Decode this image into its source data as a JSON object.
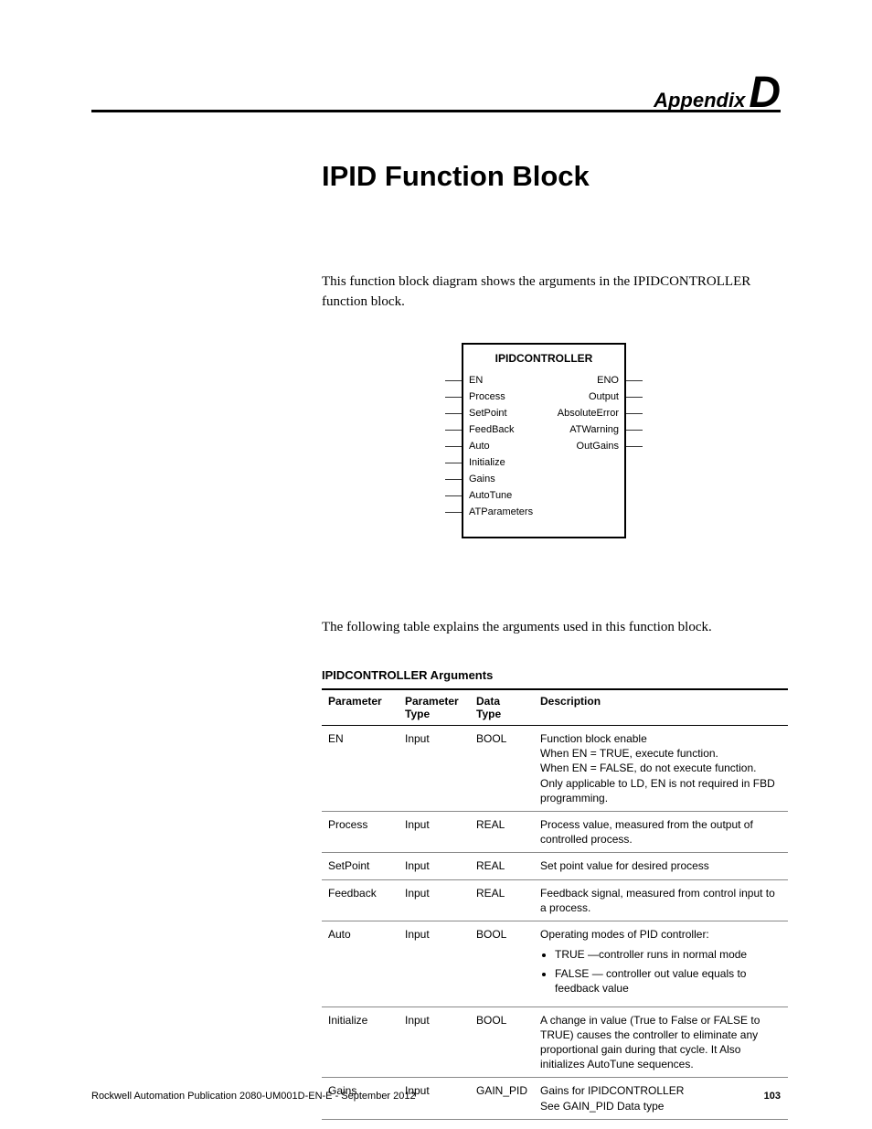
{
  "header": {
    "appendix_label": "Appendix",
    "appendix_letter": "D"
  },
  "title": "IPID Function Block",
  "intro": "This function block diagram shows the arguments in the IPIDCONTROLLER function block.",
  "diagram": {
    "block_name": "IPIDCONTROLLER",
    "left_ports": [
      "EN",
      "Process",
      "SetPoint",
      "FeedBack",
      "Auto",
      "Initialize",
      "Gains",
      "AutoTune",
      "ATParameters"
    ],
    "right_ports": [
      "ENO",
      "Output",
      "AbsoluteError",
      "ATWarning",
      "OutGains"
    ]
  },
  "table_intro": "The following table explains the arguments used in this function block.",
  "table_heading": "IPIDCONTROLLER Arguments",
  "table": {
    "headers": [
      "Parameter",
      "Parameter Type",
      "Data Type",
      "Description"
    ],
    "rows": [
      {
        "param": "EN",
        "ptype": "Input",
        "dtype": "BOOL",
        "desc_lines": [
          "Function block  enable",
          "When EN = TRUE, execute function.",
          "When EN = FALSE, do not execute function.",
          "Only applicable to LD, EN is not required in FBD programming."
        ]
      },
      {
        "param": "Process",
        "ptype": "Input",
        "dtype": "REAL",
        "desc_lines": [
          "Process value, measured from the output of controlled process."
        ]
      },
      {
        "param": "SetPoint",
        "ptype": "Input",
        "dtype": "REAL",
        "desc_lines": [
          "Set point value for desired process"
        ]
      },
      {
        "param": "Feedback",
        "ptype": "Input",
        "dtype": "REAL",
        "desc_lines": [
          "Feedback signal, measured from control input to a process."
        ]
      },
      {
        "param": "Auto",
        "ptype": "Input",
        "dtype": "BOOL",
        "desc_intro": "Operating modes of PID controller:",
        "desc_bullets": [
          "TRUE —controller runs in normal mode",
          "FALSE — controller out value equals to feedback value"
        ]
      },
      {
        "param": "Initialize",
        "ptype": "Input",
        "dtype": "BOOL",
        "desc_lines": [
          "A change in value (True to False or FALSE to TRUE) causes the controller to eliminate any proportional gain during that cycle. It Also initializes AutoTune sequences."
        ]
      },
      {
        "param": "Gains",
        "ptype": "Input",
        "dtype": "GAIN_PID",
        "desc_lines": [
          "Gains for IPIDCONTROLLER",
          "See GAIN_PID Data type"
        ]
      }
    ]
  },
  "footer": {
    "pub": "Rockwell Automation Publication 2080-UM001D-EN-E - September 2012",
    "page": "103"
  }
}
